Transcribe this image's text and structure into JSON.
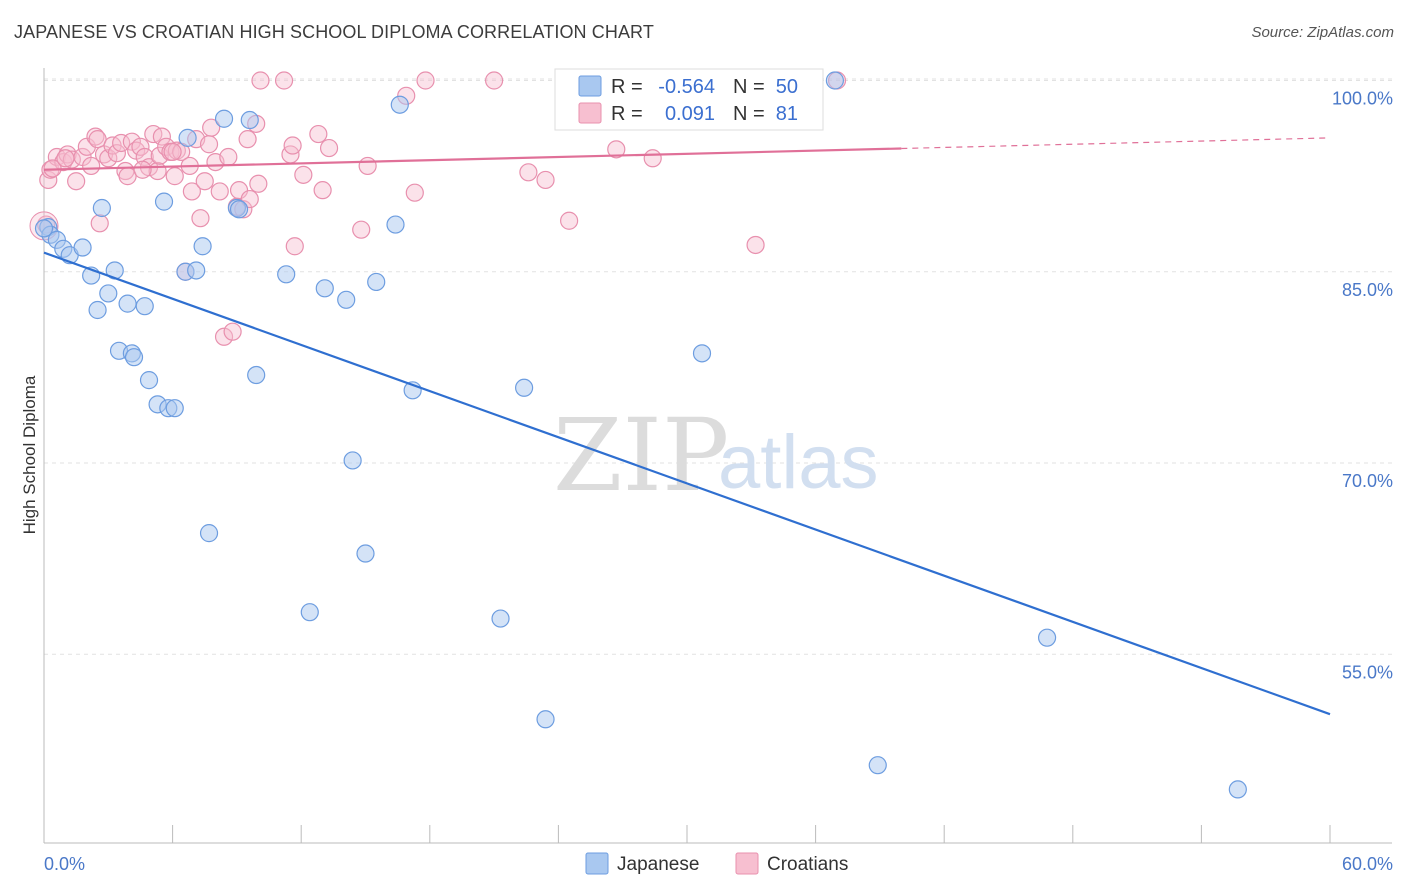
{
  "title": "JAPANESE VS CROATIAN HIGH SCHOOL DIPLOMA CORRELATION CHART",
  "source": "Source: ZipAtlas.com",
  "watermark": {
    "zip": "ZIP",
    "atlas": "atlas"
  },
  "colors": {
    "japanese_fill": "#a9c8f0",
    "japanese_stroke": "#6d9de0",
    "japanese_line": "#2f6fd0",
    "croatian_fill": "#f7bfd0",
    "croatian_stroke": "#e890ae",
    "croatian_line": "#e07098",
    "grid": "#e2e2e2",
    "axis_label": "#4a78c8"
  },
  "legend": {
    "rows": [
      {
        "r_label": "R =",
        "r_value": "-0.564",
        "n_label": "N =",
        "n_value": "50"
      },
      {
        "r_label": "R =",
        "r_value": "0.091",
        "n_label": "N =",
        "n_value": "81"
      }
    ]
  },
  "bottom_legend": {
    "series": [
      "Japanese",
      "Croatians"
    ]
  },
  "chart_data": {
    "type": "scatter",
    "ylabel": "High School Diploma",
    "xlim": [
      0,
      60
    ],
    "ylim": [
      41,
      102
    ],
    "x_tick_labels": [
      "0.0%",
      "60.0%"
    ],
    "y_ticks": [
      100,
      85,
      70,
      55
    ],
    "y_tick_labels": [
      "100.0%",
      "85.0%",
      "70.0%",
      "55.0%"
    ],
    "grid": true,
    "series": [
      {
        "name": "Japanese",
        "r": -0.564,
        "n": 50,
        "trend": {
          "x": [
            0,
            60
          ],
          "y": [
            86.5,
            50.3
          ],
          "dashed_from": null
        },
        "points": [
          [
            0.2,
            88.5
          ],
          [
            0.3,
            87.9
          ],
          [
            0.6,
            87.5
          ],
          [
            0.9,
            86.8
          ],
          [
            1.2,
            86.3
          ],
          [
            1.8,
            86.9
          ],
          [
            2.2,
            84.7
          ],
          [
            2.5,
            82.0
          ],
          [
            2.7,
            90.0
          ],
          [
            3.0,
            83.3
          ],
          [
            3.3,
            85.1
          ],
          [
            3.5,
            78.8
          ],
          [
            3.9,
            82.5
          ],
          [
            4.1,
            78.6
          ],
          [
            4.2,
            78.3
          ],
          [
            4.7,
            82.3
          ],
          [
            4.9,
            76.5
          ],
          [
            5.3,
            74.6
          ],
          [
            5.6,
            90.5
          ],
          [
            5.8,
            74.3
          ],
          [
            6.1,
            74.3
          ],
          [
            6.6,
            85.0
          ],
          [
            6.7,
            95.5
          ],
          [
            7.1,
            85.1
          ],
          [
            7.4,
            87.0
          ],
          [
            7.7,
            64.5
          ],
          [
            8.4,
            97.0
          ],
          [
            9.0,
            90.0
          ],
          [
            9.1,
            89.9
          ],
          [
            9.6,
            96.9
          ],
          [
            9.9,
            76.9
          ],
          [
            11.3,
            84.8
          ],
          [
            12.4,
            58.3
          ],
          [
            13.1,
            83.7
          ],
          [
            14.1,
            82.8
          ],
          [
            14.4,
            70.2
          ],
          [
            15.0,
            62.9
          ],
          [
            15.5,
            84.2
          ],
          [
            16.4,
            88.7
          ],
          [
            16.6,
            98.1
          ],
          [
            17.2,
            75.7
          ],
          [
            21.3,
            57.8
          ],
          [
            22.4,
            75.9
          ],
          [
            23.4,
            49.9
          ],
          [
            30.7,
            78.6
          ],
          [
            36.9,
            100.0
          ],
          [
            38.9,
            46.3
          ],
          [
            46.8,
            56.3
          ],
          [
            55.7,
            44.4
          ],
          [
            0.0,
            88.4
          ]
        ]
      },
      {
        "name": "Croatians",
        "r": 0.091,
        "n": 81,
        "trend": {
          "x": [
            0,
            60
          ],
          "y": [
            93.0,
            95.5
          ],
          "dashed_from": 40
        },
        "points": [
          [
            0.1,
            88.7
          ],
          [
            0.2,
            92.2
          ],
          [
            0.3,
            93.0
          ],
          [
            0.6,
            94.0
          ],
          [
            0.9,
            93.6
          ],
          [
            1.1,
            94.2
          ],
          [
            1.3,
            93.8
          ],
          [
            1.5,
            92.1
          ],
          [
            1.8,
            94.0
          ],
          [
            2.0,
            94.8
          ],
          [
            2.2,
            93.3
          ],
          [
            2.4,
            95.6
          ],
          [
            2.5,
            95.4
          ],
          [
            2.6,
            88.8
          ],
          [
            2.8,
            94.2
          ],
          [
            3.0,
            93.9
          ],
          [
            3.2,
            94.9
          ],
          [
            3.4,
            94.3
          ],
          [
            3.6,
            95.1
          ],
          [
            3.8,
            92.9
          ],
          [
            3.9,
            92.5
          ],
          [
            4.1,
            95.2
          ],
          [
            4.3,
            94.5
          ],
          [
            4.5,
            94.8
          ],
          [
            4.7,
            94.0
          ],
          [
            4.9,
            93.2
          ],
          [
            5.1,
            95.8
          ],
          [
            5.3,
            92.9
          ],
          [
            5.4,
            94.1
          ],
          [
            5.5,
            95.6
          ],
          [
            5.7,
            94.8
          ],
          [
            5.9,
            94.4
          ],
          [
            6.1,
            92.5
          ],
          [
            6.2,
            94.5
          ],
          [
            6.4,
            94.4
          ],
          [
            6.6,
            85.0
          ],
          [
            6.8,
            93.3
          ],
          [
            6.9,
            91.3
          ],
          [
            7.1,
            95.4
          ],
          [
            7.3,
            89.2
          ],
          [
            7.5,
            92.1
          ],
          [
            7.7,
            95.0
          ],
          [
            7.8,
            96.3
          ],
          [
            8.0,
            93.6
          ],
          [
            8.2,
            91.3
          ],
          [
            8.4,
            79.9
          ],
          [
            8.6,
            94.0
          ],
          [
            8.8,
            80.3
          ],
          [
            9.0,
            90.1
          ],
          [
            9.1,
            91.4
          ],
          [
            9.3,
            89.9
          ],
          [
            9.5,
            95.4
          ],
          [
            9.6,
            90.7
          ],
          [
            9.9,
            96.6
          ],
          [
            10.0,
            91.9
          ],
          [
            10.1,
            100.0
          ],
          [
            11.2,
            100.0
          ],
          [
            11.5,
            94.2
          ],
          [
            11.6,
            94.9
          ],
          [
            11.7,
            87.0
          ],
          [
            12.1,
            92.6
          ],
          [
            12.8,
            95.8
          ],
          [
            13.0,
            91.4
          ],
          [
            13.3,
            94.7
          ],
          [
            14.8,
            88.3
          ],
          [
            15.1,
            93.3
          ],
          [
            16.9,
            98.8
          ],
          [
            17.3,
            91.2
          ],
          [
            17.8,
            100.0
          ],
          [
            21.0,
            100.0
          ],
          [
            22.6,
            92.8
          ],
          [
            23.4,
            92.2
          ],
          [
            24.5,
            89.0
          ],
          [
            26.7,
            94.6
          ],
          [
            28.4,
            93.9
          ],
          [
            33.2,
            87.1
          ],
          [
            37.0,
            100.0
          ],
          [
            0.4,
            93.1
          ],
          [
            1.0,
            93.9
          ],
          [
            4.6,
            93.0
          ],
          [
            6.0,
            94.4
          ]
        ]
      }
    ]
  }
}
